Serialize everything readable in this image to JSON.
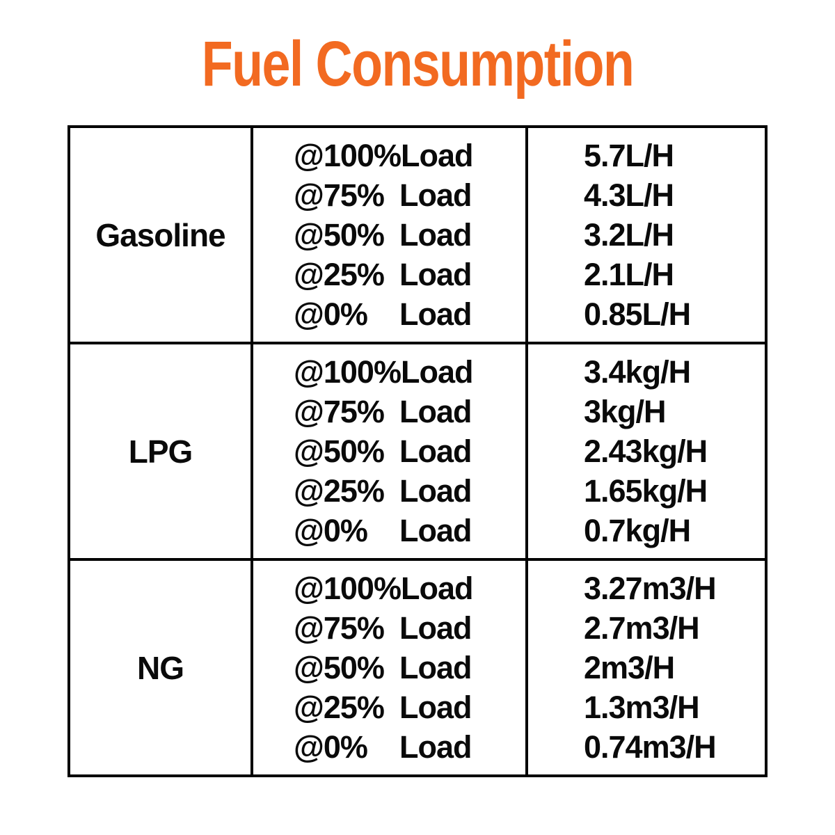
{
  "title": "Fuel Consumption",
  "colors": {
    "accent": "#F26A21",
    "text": "#0A0A0A",
    "border": "#000000",
    "background": "#FFFFFF"
  },
  "chart_data": {
    "type": "table",
    "title": "Fuel Consumption",
    "rows": [
      {
        "fuel": "Gasoline",
        "entries": [
          {
            "load_pct": "@100%",
            "load_label": "Load",
            "value": "5.7L/H"
          },
          {
            "load_pct": "@75%",
            "load_label": "Load",
            "value": "4.3L/H"
          },
          {
            "load_pct": "@50%",
            "load_label": "Load",
            "value": "3.2L/H"
          },
          {
            "load_pct": "@25%",
            "load_label": "Load",
            "value": "2.1L/H"
          },
          {
            "load_pct": "@0%",
            "load_label": "Load",
            "value": "0.85L/H"
          }
        ]
      },
      {
        "fuel": "LPG",
        "entries": [
          {
            "load_pct": "@100%",
            "load_label": "Load",
            "value": "3.4kg/H"
          },
          {
            "load_pct": "@75%",
            "load_label": "Load",
            "value": "3kg/H"
          },
          {
            "load_pct": "@50%",
            "load_label": "Load",
            "value": "2.43kg/H"
          },
          {
            "load_pct": "@25%",
            "load_label": "Load",
            "value": "1.65kg/H"
          },
          {
            "load_pct": "@0%",
            "load_label": "Load",
            "value": "0.7kg/H"
          }
        ]
      },
      {
        "fuel": "NG",
        "entries": [
          {
            "load_pct": "@100%",
            "load_label": "Load",
            "value": "3.27m3/H"
          },
          {
            "load_pct": "@75%",
            "load_label": "Load",
            "value": "2.7m3/H"
          },
          {
            "load_pct": "@50%",
            "load_label": "Load",
            "value": "2m3/H"
          },
          {
            "load_pct": "@25%",
            "load_label": "Load",
            "value": "1.3m3/H"
          },
          {
            "load_pct": "@0%",
            "load_label": "Load",
            "value": "0.74m3/H"
          }
        ]
      }
    ]
  }
}
